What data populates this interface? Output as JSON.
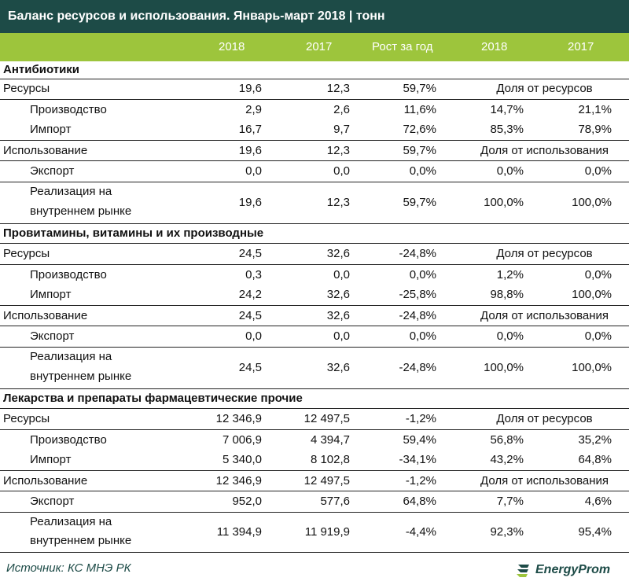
{
  "title": "Баланс ресурсов и использования. Январь-март 2018 | тонн",
  "header": {
    "col1": "2018",
    "col2": "2017",
    "col3": "Рост за год",
    "col4": "2018",
    "col5": "2017"
  },
  "sections": [
    {
      "name": "Антибиотики",
      "resources": {
        "label": "Ресурсы",
        "v2018": "19,6",
        "v2017": "12,3",
        "growth": "59,7%",
        "share_label": "Доля от ресурсов"
      },
      "production": {
        "label": "Производство",
        "v2018": "2,9",
        "v2017": "2,6",
        "growth": "11,6%",
        "s2018": "14,7%",
        "s2017": "21,1%"
      },
      "import": {
        "label": "Импорт",
        "v2018": "16,7",
        "v2017": "9,7",
        "growth": "72,6%",
        "s2018": "85,3%",
        "s2017": "78,9%"
      },
      "usage": {
        "label": "Использование",
        "v2018": "19,6",
        "v2017": "12,3",
        "growth": "59,7%",
        "share_label": "Доля от использования"
      },
      "export": {
        "label": "Экспорт",
        "v2018": "0,0",
        "v2017": "0,0",
        "growth": "0,0%",
        "s2018": "0,0%",
        "s2017": "0,0%"
      },
      "domestic": {
        "label_line1": "Реализация на",
        "label_line2": "внутреннем рынке",
        "v2018": "19,6",
        "v2017": "12,3",
        "growth": "59,7%",
        "s2018": "100,0%",
        "s2017": "100,0%"
      }
    },
    {
      "name": "Провитамины, витамины и их производные",
      "resources": {
        "label": "Ресурсы",
        "v2018": "24,5",
        "v2017": "32,6",
        "growth": "-24,8%",
        "share_label": "Доля от ресурсов"
      },
      "production": {
        "label": "Производство",
        "v2018": "0,3",
        "v2017": "0,0",
        "growth": "0,0%",
        "s2018": "1,2%",
        "s2017": "0,0%"
      },
      "import": {
        "label": "Импорт",
        "v2018": "24,2",
        "v2017": "32,6",
        "growth": "-25,8%",
        "s2018": "98,8%",
        "s2017": "100,0%"
      },
      "usage": {
        "label": "Использование",
        "v2018": "24,5",
        "v2017": "32,6",
        "growth": "-24,8%",
        "share_label": "Доля от использования"
      },
      "export": {
        "label": "Экспорт",
        "v2018": "0,0",
        "v2017": "0,0",
        "growth": "0,0%",
        "s2018": "0,0%",
        "s2017": "0,0%"
      },
      "domestic": {
        "label_line1": "Реализация на",
        "label_line2": "внутреннем рынке",
        "v2018": "24,5",
        "v2017": "32,6",
        "growth": "-24,8%",
        "s2018": "100,0%",
        "s2017": "100,0%"
      }
    },
    {
      "name": "Лекарства и препараты фармацевтические прочие",
      "resources": {
        "label": "Ресурсы",
        "v2018": "12 346,9",
        "v2017": "12 497,5",
        "growth": "-1,2%",
        "share_label": "Доля от ресурсов"
      },
      "production": {
        "label": "Производство",
        "v2018": "7 006,9",
        "v2017": "4 394,7",
        "growth": "59,4%",
        "s2018": "56,8%",
        "s2017": "35,2%"
      },
      "import": {
        "label": "Импорт",
        "v2018": "5 340,0",
        "v2017": "8 102,8",
        "growth": "-34,1%",
        "s2018": "43,2%",
        "s2017": "64,8%"
      },
      "usage": {
        "label": "Использование",
        "v2018": "12 346,9",
        "v2017": "12 497,5",
        "growth": "-1,2%",
        "share_label": "Доля от использования"
      },
      "export": {
        "label": "Экспорт",
        "v2018": "952,0",
        "v2017": "577,6",
        "growth": "64,8%",
        "s2018": "7,7%",
        "s2017": "4,6%"
      },
      "domestic": {
        "label_line1": "Реализация на",
        "label_line2": "внутреннем рынке",
        "v2018": "11 394,9",
        "v2017": "11 919,9",
        "growth": "-4,4%",
        "s2018": "92,3%",
        "s2017": "95,4%"
      }
    }
  ],
  "footer": {
    "source": "Источник: КС МНЭ РК",
    "brand": "EnergyProm",
    "brand_color": "#1d4b47",
    "accent_color": "#9dc53c"
  }
}
